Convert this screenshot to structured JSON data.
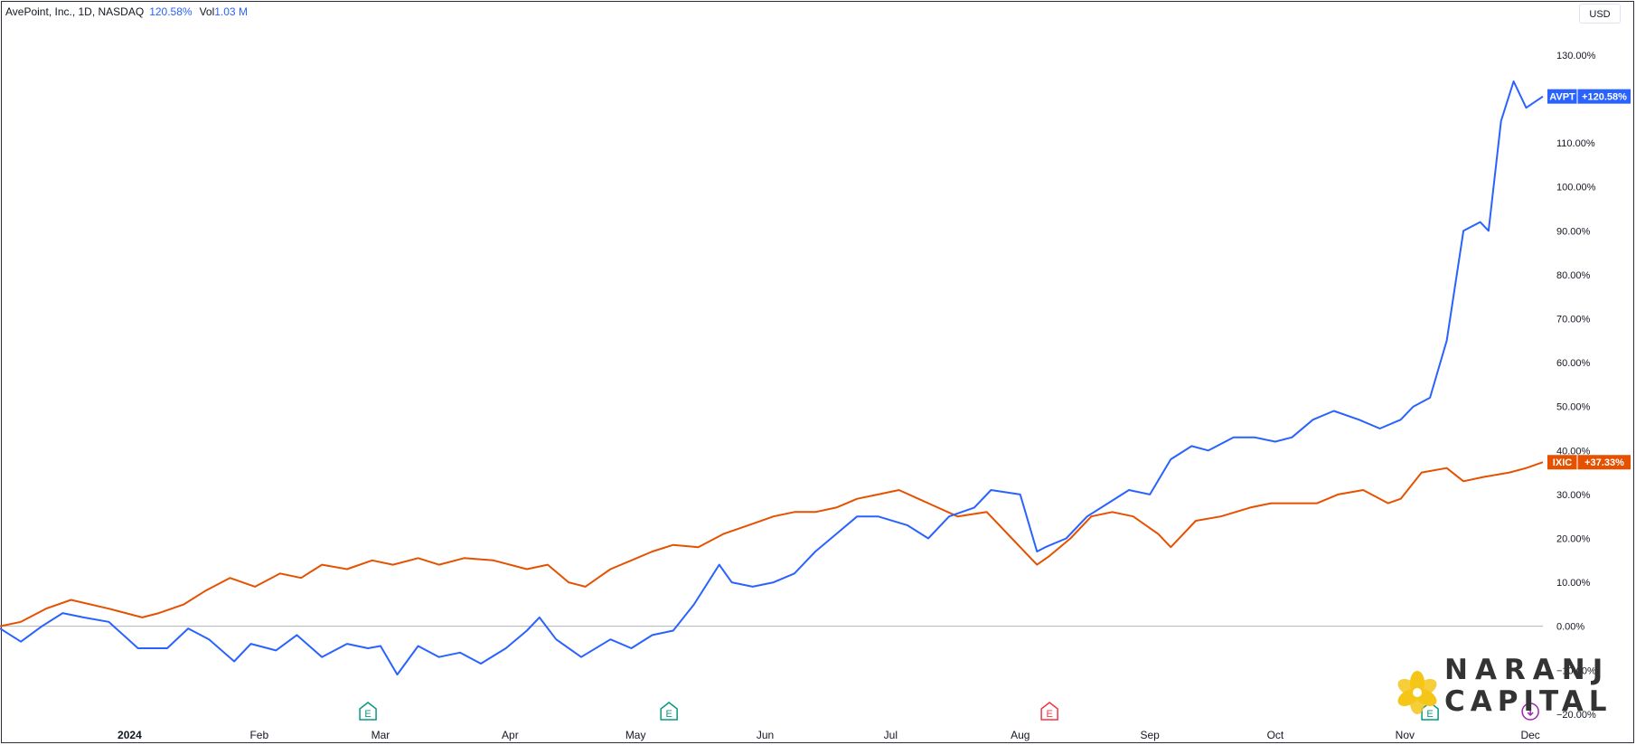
{
  "header": {
    "title": "AvePoint, Inc., 1D, NASDAQ",
    "change": "120.58%",
    "volume_label": "Vol",
    "volume_value": "1.03 M"
  },
  "currency_button": "USD",
  "brand": {
    "line1": "NARANJ",
    "line2": "CAPITAL"
  },
  "colors": {
    "avpt": "#2962ff",
    "ixic": "#e65100",
    "zero_line": "#b2b5be",
    "axis_text": "#131722",
    "earnings_green": "#089981",
    "earnings_red": "#f23645",
    "dividend": "#9c27b0",
    "logo": "#f5c518"
  },
  "chart_data": {
    "type": "line",
    "title": "AvePoint, Inc., 1D, NASDAQ",
    "ylabel": "",
    "y_unit": "%",
    "ylim": [
      -22.5,
      138
    ],
    "y_ticks": [
      130,
      120,
      110,
      100,
      90,
      80,
      70,
      60,
      50,
      40,
      30,
      20,
      10,
      0,
      -10,
      -20
    ],
    "y_tick_labels": [
      "130.00%",
      "120.00%",
      "110.00%",
      "100.00%",
      "90.00%",
      "80.00%",
      "70.00%",
      "60.00%",
      "50.00%",
      "40.00%",
      "30.00%",
      "20.00%",
      "10.00%",
      "0.00%",
      "−10.00%",
      "−20.00%"
    ],
    "x_domain": [
      "2023-12-01",
      "2024-12-04"
    ],
    "x_ticks": [
      {
        "date": "2024-01-01",
        "label": "2024"
      },
      {
        "date": "2024-02-01",
        "label": "Feb"
      },
      {
        "date": "2024-03-01",
        "label": "Mar"
      },
      {
        "date": "2024-04-01",
        "label": "Apr"
      },
      {
        "date": "2024-05-01",
        "label": "May"
      },
      {
        "date": "2024-06-01",
        "label": "Jun"
      },
      {
        "date": "2024-07-01",
        "label": "Jul"
      },
      {
        "date": "2024-08-01",
        "label": "Aug"
      },
      {
        "date": "2024-09-01",
        "label": "Sep"
      },
      {
        "date": "2024-10-01",
        "label": "Oct"
      },
      {
        "date": "2024-11-01",
        "label": "Nov"
      },
      {
        "date": "2024-12-01",
        "label": "Dec"
      }
    ],
    "grid": false,
    "series": [
      {
        "name": "AVPT",
        "last_label": "+120.58%",
        "x": [
          "2023-12-01",
          "2023-12-06",
          "2023-12-11",
          "2023-12-16",
          "2023-12-21",
          "2023-12-27",
          "2024-01-03",
          "2024-01-10",
          "2024-01-15",
          "2024-01-20",
          "2024-01-26",
          "2024-01-30",
          "2024-02-05",
          "2024-02-10",
          "2024-02-16",
          "2024-02-22",
          "2024-02-27",
          "2024-03-01",
          "2024-03-05",
          "2024-03-10",
          "2024-03-15",
          "2024-03-20",
          "2024-03-25",
          "2024-03-31",
          "2024-04-05",
          "2024-04-08",
          "2024-04-12",
          "2024-04-18",
          "2024-04-25",
          "2024-04-30",
          "2024-05-05",
          "2024-05-10",
          "2024-05-15",
          "2024-05-21",
          "2024-05-24",
          "2024-05-29",
          "2024-06-03",
          "2024-06-08",
          "2024-06-13",
          "2024-06-18",
          "2024-06-23",
          "2024-06-28",
          "2024-07-05",
          "2024-07-10",
          "2024-07-15",
          "2024-07-21",
          "2024-07-25",
          "2024-08-01",
          "2024-08-05",
          "2024-08-07",
          "2024-08-12",
          "2024-08-17",
          "2024-08-22",
          "2024-08-27",
          "2024-09-01",
          "2024-09-06",
          "2024-09-11",
          "2024-09-15",
          "2024-09-21",
          "2024-09-26",
          "2024-10-01",
          "2024-10-05",
          "2024-10-10",
          "2024-10-15",
          "2024-10-21",
          "2024-10-26",
          "2024-10-31",
          "2024-11-03",
          "2024-11-07",
          "2024-11-11",
          "2024-11-15",
          "2024-11-19",
          "2024-11-21",
          "2024-11-24",
          "2024-11-27",
          "2024-11-30",
          "2024-12-04"
        ],
        "values": [
          -0.5,
          -3.5,
          0,
          3,
          2,
          1,
          -5,
          -5,
          -0.5,
          -3,
          -8,
          -4,
          -5.5,
          -2,
          -7,
          -4,
          -5,
          -4.5,
          -11,
          -4.5,
          -7,
          -6,
          -8.5,
          -5,
          -1,
          2,
          -3,
          -7,
          -3,
          -5,
          -2,
          -1,
          5,
          14,
          10,
          9,
          10,
          12,
          17,
          21,
          25,
          25,
          23,
          20,
          25,
          27,
          31,
          30,
          17,
          18,
          20,
          25,
          28,
          31,
          30,
          38,
          41,
          40,
          43,
          43,
          42,
          43,
          47,
          49,
          47,
          45,
          47,
          50,
          52,
          65,
          90,
          92,
          90,
          115,
          124,
          118,
          120.58
        ]
      },
      {
        "name": "IXIC",
        "last_label": "+37.33%",
        "x": [
          "2023-12-01",
          "2023-12-06",
          "2023-12-12",
          "2023-12-18",
          "2023-12-27",
          "2024-01-04",
          "2024-01-08",
          "2024-01-14",
          "2024-01-19",
          "2024-01-25",
          "2024-01-31",
          "2024-02-06",
          "2024-02-11",
          "2024-02-16",
          "2024-02-22",
          "2024-02-28",
          "2024-03-04",
          "2024-03-10",
          "2024-03-15",
          "2024-03-21",
          "2024-03-28",
          "2024-04-05",
          "2024-04-10",
          "2024-04-15",
          "2024-04-19",
          "2024-04-25",
          "2024-04-30",
          "2024-05-05",
          "2024-05-10",
          "2024-05-16",
          "2024-05-22",
          "2024-05-28",
          "2024-06-03",
          "2024-06-08",
          "2024-06-13",
          "2024-06-18",
          "2024-06-23",
          "2024-06-28",
          "2024-07-03",
          "2024-07-10",
          "2024-07-17",
          "2024-07-24",
          "2024-07-30",
          "2024-08-05",
          "2024-08-08",
          "2024-08-13",
          "2024-08-18",
          "2024-08-23",
          "2024-08-28",
          "2024-09-03",
          "2024-09-06",
          "2024-09-12",
          "2024-09-18",
          "2024-09-25",
          "2024-09-30",
          "2024-10-05",
          "2024-10-11",
          "2024-10-16",
          "2024-10-22",
          "2024-10-28",
          "2024-10-31",
          "2024-11-05",
          "2024-11-11",
          "2024-11-15",
          "2024-11-20",
          "2024-11-26",
          "2024-11-30",
          "2024-12-04"
        ],
        "values": [
          0,
          1,
          4,
          6,
          4,
          2,
          3,
          5,
          8,
          11,
          9,
          12,
          11,
          14,
          13,
          15,
          14,
          15.5,
          14,
          15.5,
          15,
          13,
          14,
          10,
          9,
          13,
          15,
          17,
          18.5,
          18,
          21,
          23,
          25,
          26,
          26,
          27,
          29,
          30,
          31,
          28,
          25,
          26,
          20,
          14,
          16,
          20,
          25,
          26,
          25,
          21,
          18,
          24,
          25,
          27,
          28,
          28,
          28,
          30,
          31,
          28,
          29,
          35,
          36,
          33,
          34,
          35,
          36,
          37.33
        ]
      }
    ],
    "events": [
      {
        "type": "earnings",
        "label": "E",
        "date": "2024-02-27",
        "color": "#089981"
      },
      {
        "type": "earnings",
        "label": "E",
        "date": "2024-05-09",
        "color": "#089981"
      },
      {
        "type": "earnings",
        "label": "E",
        "date": "2024-08-08",
        "color": "#f23645"
      },
      {
        "type": "earnings",
        "label": "E",
        "date": "2024-11-07",
        "color": "#089981"
      },
      {
        "type": "dividend",
        "label": "",
        "date": "2024-12-01",
        "color": "#9c27b0"
      }
    ]
  }
}
